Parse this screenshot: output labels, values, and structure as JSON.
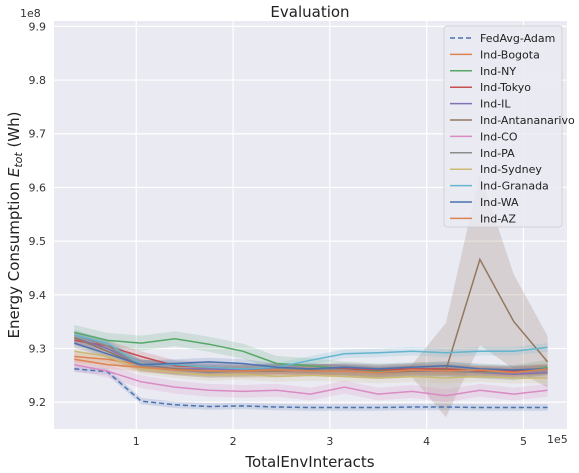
{
  "chart_data": {
    "type": "line",
    "title": "Evaluation",
    "xlabel": "TotalEnvInteracts",
    "ylabel": "Energy Consumption E_tot (Wh)",
    "ylabel_main": "Energy Consumption ",
    "ylabel_sym": "E",
    "ylabel_sub": "tot",
    "ylabel_unit": " (Wh)",
    "x_exponent": "1e5",
    "y_exponent": "1e8",
    "xlim": [
      0.15,
      5.45
    ],
    "ylim": [
      9.15,
      9.91
    ],
    "xticks": [
      1,
      2,
      3,
      4,
      5
    ],
    "yticks": [
      9.2,
      9.3,
      9.4,
      9.5,
      9.6,
      9.7,
      9.8,
      9.9
    ],
    "grid": true,
    "legend_position": "top-right",
    "x": [
      0.36,
      0.7,
      1.05,
      1.4,
      1.75,
      2.1,
      2.45,
      2.8,
      3.15,
      3.5,
      3.85,
      4.2,
      4.55,
      4.9,
      5.25
    ],
    "series": [
      {
        "name": "FedAvg-Adam",
        "color": "#4c72b0",
        "dashed": true,
        "values": [
          9.262,
          9.257,
          9.202,
          9.195,
          9.192,
          9.193,
          9.191,
          9.19,
          9.19,
          9.19,
          9.191,
          9.191,
          9.19,
          9.19,
          9.19
        ],
        "band": 0.006
      },
      {
        "name": "Ind-Bogota",
        "color": "#dd8452",
        "values": [
          9.285,
          9.28,
          9.27,
          9.262,
          9.258,
          9.257,
          9.26,
          9.262,
          9.258,
          9.255,
          9.258,
          9.26,
          9.257,
          9.255,
          9.26
        ],
        "band": 0.01
      },
      {
        "name": "Ind-NY",
        "color": "#55a868",
        "values": [
          9.33,
          9.315,
          9.31,
          9.318,
          9.308,
          9.295,
          9.272,
          9.268,
          9.262,
          9.258,
          9.26,
          9.262,
          9.258,
          9.255,
          9.265
        ],
        "band": 0.014
      },
      {
        "name": "Ind-Tokyo",
        "color": "#c44e52",
        "values": [
          9.315,
          9.305,
          9.285,
          9.268,
          9.265,
          9.262,
          9.262,
          9.26,
          9.262,
          9.26,
          9.262,
          9.262,
          9.258,
          9.258,
          9.262
        ],
        "band": 0.01
      },
      {
        "name": "Ind-IL",
        "color": "#8172b3",
        "values": [
          9.32,
          9.3,
          9.27,
          9.262,
          9.262,
          9.26,
          9.262,
          9.262,
          9.26,
          9.255,
          9.258,
          9.258,
          9.255,
          9.252,
          9.255
        ],
        "band": 0.01
      },
      {
        "name": "Ind-Antananarivo",
        "color": "#937860",
        "values": [
          9.32,
          9.295,
          9.268,
          9.262,
          9.258,
          9.258,
          9.258,
          9.26,
          9.258,
          9.255,
          9.258,
          9.26,
          9.466,
          9.35,
          9.275
        ],
        "band": 0.012,
        "spike_band": 0.16
      },
      {
        "name": "Ind-CO",
        "color": "#da8bc3",
        "values": [
          9.27,
          9.258,
          9.238,
          9.228,
          9.222,
          9.22,
          9.222,
          9.215,
          9.228,
          9.215,
          9.22,
          9.212,
          9.222,
          9.215,
          9.222
        ],
        "band": 0.012
      },
      {
        "name": "Ind-PA",
        "color": "#8c8c8c",
        "values": [
          9.325,
          9.305,
          9.268,
          9.26,
          9.255,
          9.258,
          9.262,
          9.262,
          9.26,
          9.255,
          9.26,
          9.258,
          9.255,
          9.255,
          9.26
        ],
        "band": 0.01
      },
      {
        "name": "Ind-Sydney",
        "color": "#ccb974",
        "values": [
          9.295,
          9.285,
          9.262,
          9.255,
          9.25,
          9.252,
          9.248,
          9.25,
          9.248,
          9.245,
          9.248,
          9.245,
          9.248,
          9.245,
          9.245
        ],
        "band": 0.01
      },
      {
        "name": "Ind-Granada",
        "color": "#64b5cd",
        "values": [
          9.325,
          9.31,
          9.27,
          9.27,
          9.265,
          9.262,
          9.265,
          9.278,
          9.29,
          9.292,
          9.295,
          9.292,
          9.295,
          9.295,
          9.302
        ],
        "band": 0.008
      },
      {
        "name": "Ind-WA",
        "color": "#4c72b0",
        "values": [
          9.31,
          9.29,
          9.27,
          9.272,
          9.275,
          9.272,
          9.265,
          9.262,
          9.265,
          9.262,
          9.265,
          9.268,
          9.262,
          9.26,
          9.262
        ],
        "band": 0.008
      },
      {
        "name": "Ind-AZ",
        "color": "#dd8452",
        "values": [
          9.28,
          9.27,
          9.265,
          9.26,
          9.258,
          9.258,
          9.26,
          9.258,
          9.258,
          9.255,
          9.26,
          9.258,
          9.26,
          9.255,
          9.262
        ],
        "band": 0.008
      }
    ]
  }
}
